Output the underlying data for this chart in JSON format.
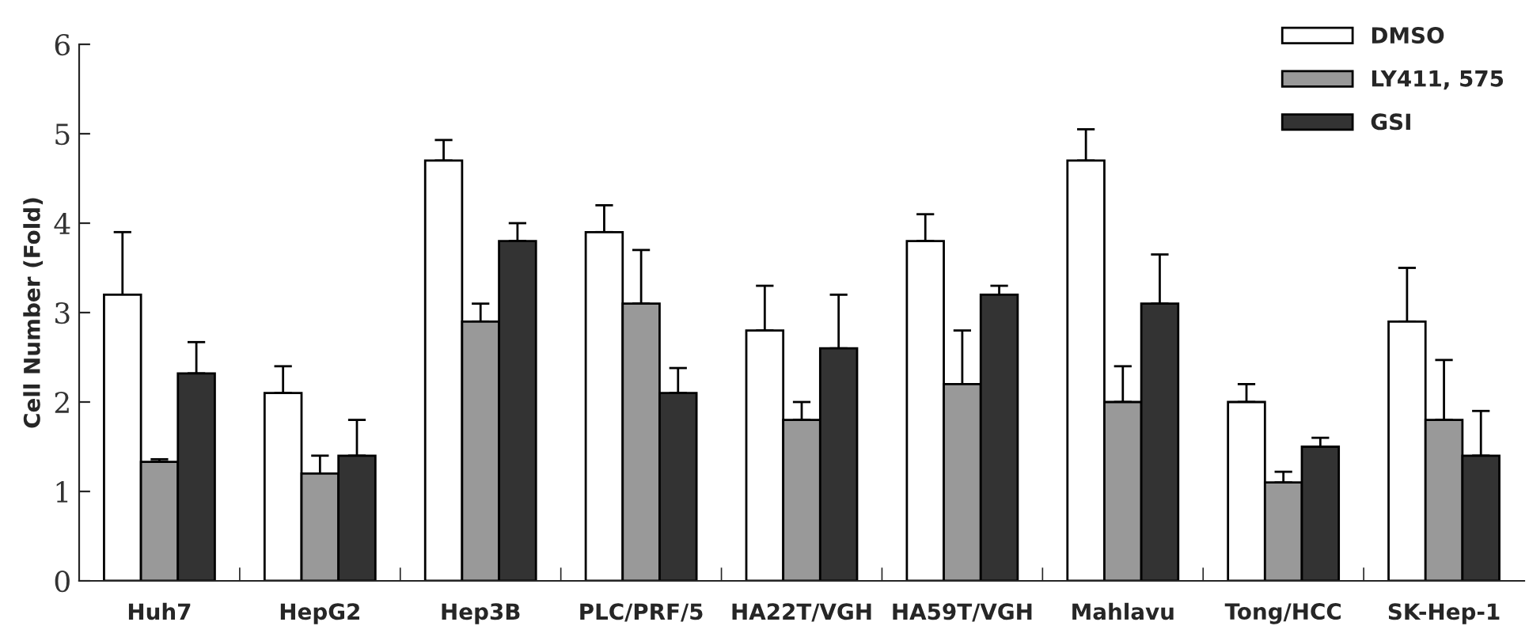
{
  "chart_data": {
    "type": "bar",
    "ylabel": "Cell Number (Fold)",
    "categories": [
      "Huh7",
      "HepG2",
      "Hep3B",
      "PLC/PRF/5",
      "HA22T/VGH",
      "HA59T/VGH",
      "Mahlavu",
      "Tong/HCC",
      "SK-Hep-1"
    ],
    "series": [
      {
        "name": "DMSO",
        "color": "#ffffff",
        "values": [
          3.2,
          2.1,
          4.7,
          3.9,
          2.8,
          3.8,
          4.7,
          2.0,
          2.9
        ],
        "errors": [
          [
            3.2,
            3.9
          ],
          [
            2.1,
            2.4
          ],
          [
            4.7,
            4.93
          ],
          [
            3.9,
            4.2
          ],
          [
            2.8,
            3.3
          ],
          [
            3.8,
            4.1
          ],
          [
            4.7,
            5.05
          ],
          [
            2.0,
            2.2
          ],
          [
            2.9,
            3.5
          ]
        ]
      },
      {
        "name": "LY411, 575",
        "color": "#999999",
        "values": [
          1.33,
          1.2,
          2.9,
          3.1,
          1.8,
          2.2,
          2.0,
          1.1,
          1.8
        ],
        "errors": [
          [
            1.33,
            1.36
          ],
          [
            1.2,
            1.4
          ],
          [
            2.9,
            3.1
          ],
          [
            3.1,
            3.7
          ],
          [
            1.8,
            2.0
          ],
          [
            2.2,
            2.8
          ],
          [
            2.0,
            2.4
          ],
          [
            1.1,
            1.22
          ],
          [
            1.8,
            2.47
          ]
        ]
      },
      {
        "name": "GSI",
        "color": "#333333",
        "values": [
          2.32,
          1.4,
          3.8,
          2.1,
          2.6,
          3.2,
          3.1,
          1.5,
          1.4
        ],
        "errors": [
          [
            2.32,
            2.67
          ],
          [
            1.4,
            1.8
          ],
          [
            3.8,
            4.0
          ],
          [
            2.1,
            2.38
          ],
          [
            2.6,
            3.2
          ],
          [
            3.2,
            3.3
          ],
          [
            3.1,
            3.65
          ],
          [
            1.5,
            1.6
          ],
          [
            1.4,
            1.9
          ]
        ]
      }
    ],
    "ylim": [
      0,
      6
    ],
    "yticks": [
      0,
      1,
      2,
      3,
      4,
      5,
      6
    ],
    "grid": false,
    "legend": "top right"
  }
}
